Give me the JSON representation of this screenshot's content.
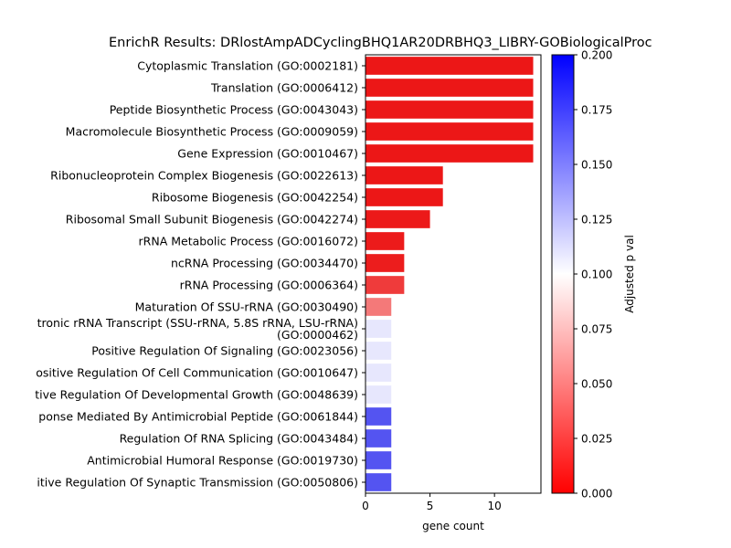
{
  "chart_data": {
    "type": "bar",
    "orientation": "horizontal",
    "title": "EnrichR Results: DRlostAmpADCyclingBHQ1AR20DRBHQ3_LIBRY-GOBiologicalProc",
    "xlabel": "gene count",
    "ylabel": "",
    "xlim": [
      0,
      13.6
    ],
    "xticks": [
      0,
      5,
      10
    ],
    "colorbar": {
      "label": "Adjusted p val",
      "range": [
        0.0,
        0.2
      ],
      "ticks": [
        "0.000",
        "0.025",
        "0.050",
        "0.075",
        "0.100",
        "0.125",
        "0.150",
        "0.175",
        "0.200"
      ],
      "colormap": "bwr_r",
      "low_color": "#ff0000",
      "mid_color": "#ffffff",
      "high_color": "#0000ff"
    },
    "bars": [
      {
        "label": "Cytoplasmic Translation (GO:0002181)",
        "count": 13,
        "adj_p": 0.005
      },
      {
        "label": "Translation (GO:0006412)",
        "count": 13,
        "adj_p": 0.005
      },
      {
        "label": "Peptide Biosynthetic Process (GO:0043043)",
        "count": 13,
        "adj_p": 0.005
      },
      {
        "label": "Macromolecule Biosynthetic Process (GO:0009059)",
        "count": 13,
        "adj_p": 0.005
      },
      {
        "label": "Gene Expression (GO:0010467)",
        "count": 13,
        "adj_p": 0.005
      },
      {
        "label": "Ribonucleoprotein Complex Biogenesis (GO:0022613)",
        "count": 6,
        "adj_p": 0.005
      },
      {
        "label": "Ribosome Biogenesis (GO:0042254)",
        "count": 6,
        "adj_p": 0.005
      },
      {
        "label": "Ribosomal Small Subunit Biogenesis (GO:0042274)",
        "count": 5,
        "adj_p": 0.006
      },
      {
        "label": "rRNA Metabolic Process (GO:0016072)",
        "count": 3,
        "adj_p": 0.007
      },
      {
        "label": "ncRNA Processing (GO:0034470)",
        "count": 3,
        "adj_p": 0.008
      },
      {
        "label": "rRNA Processing (GO:0006364)",
        "count": 3,
        "adj_p": 0.02
      },
      {
        "label": "Maturation Of SSU-rRNA (GO:0030490)",
        "count": 2,
        "adj_p": 0.045
      },
      {
        "label": "tronic rRNA Transcript (SSU-rRNA, 5.8S rRNA, LSU-rRNA)\n(GO:0000462)",
        "count": 2,
        "adj_p": 0.11
      },
      {
        "label": "Positive Regulation Of Signaling (GO:0023056)",
        "count": 2,
        "adj_p": 0.11
      },
      {
        "label": "ositive Regulation Of Cell Communication (GO:0010647)",
        "count": 2,
        "adj_p": 0.11
      },
      {
        "label": "tive Regulation Of Developmental Growth (GO:0048639)",
        "count": 2,
        "adj_p": 0.11
      },
      {
        "label": "ponse Mediated By Antimicrobial Peptide (GO:0061844)",
        "count": 2,
        "adj_p": 0.17
      },
      {
        "label": "Regulation Of RNA Splicing (GO:0043484)",
        "count": 2,
        "adj_p": 0.17
      },
      {
        "label": "Antimicrobial Humoral Response (GO:0019730)",
        "count": 2,
        "adj_p": 0.17
      },
      {
        "label": "itive Regulation Of Synaptic Transmission (GO:0050806)",
        "count": 2,
        "adj_p": 0.17
      }
    ]
  }
}
